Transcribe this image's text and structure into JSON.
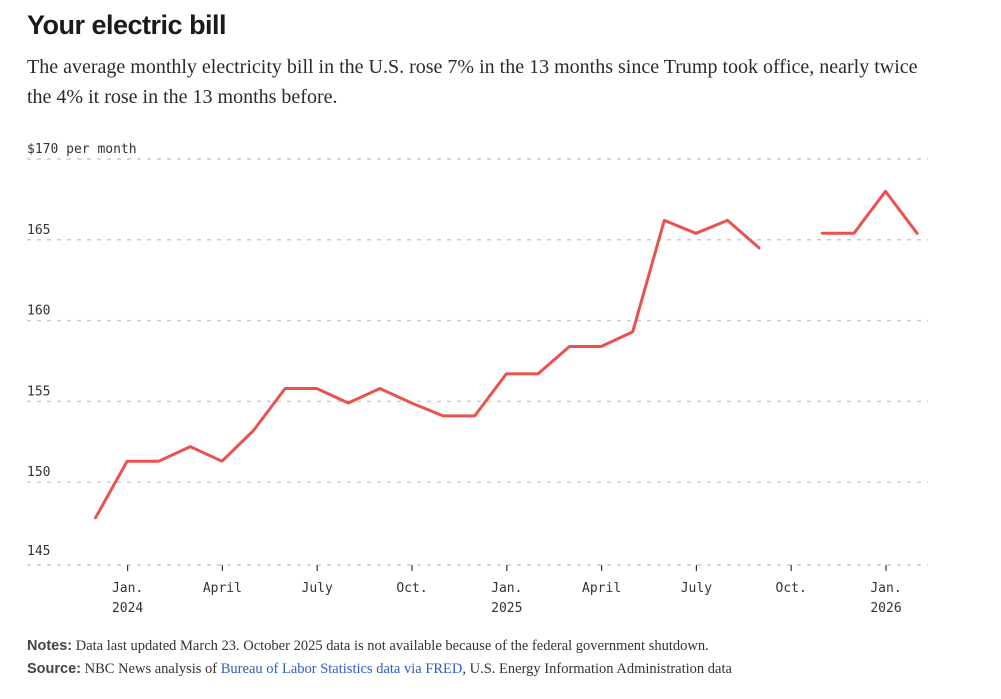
{
  "header": {
    "title": "Your electric bill",
    "subtitle": "The average monthly electricity bill in the U.S. rose 7% in the 13 months since Trump took office, nearly twice the 4% it rose in the 13 months before."
  },
  "colors": {
    "line": "#e8534f",
    "grid": "#cccccc",
    "text": "#333333",
    "link": "#2f5cc7"
  },
  "chart_data": {
    "type": "line",
    "title": "Your electric bill",
    "ylabel": "$170 per month",
    "ylim": [
      145,
      170
    ],
    "yticks": [
      {
        "value": 170,
        "label": "$170 per month"
      },
      {
        "value": 165,
        "label": "165"
      },
      {
        "value": 160,
        "label": "160"
      },
      {
        "value": 155,
        "label": "155"
      },
      {
        "value": 150,
        "label": "150"
      },
      {
        "value": 145,
        "label": "145"
      }
    ],
    "xticks": [
      {
        "index": 1,
        "line1": "Jan.",
        "line2": "2024"
      },
      {
        "index": 4,
        "line1": "April",
        "line2": ""
      },
      {
        "index": 7,
        "line1": "July",
        "line2": ""
      },
      {
        "index": 10,
        "line1": "Oct.",
        "line2": ""
      },
      {
        "index": 13,
        "line1": "Jan.",
        "line2": "2025"
      },
      {
        "index": 16,
        "line1": "April",
        "line2": ""
      },
      {
        "index": 19,
        "line1": "July",
        "line2": ""
      },
      {
        "index": 22,
        "line1": "Oct.",
        "line2": ""
      },
      {
        "index": 25,
        "line1": "Jan.",
        "line2": "2026"
      }
    ],
    "series": [
      {
        "name": "Average monthly electricity bill",
        "points": [
          {
            "month": "Dec. 2023",
            "value": 147.8
          },
          {
            "month": "Jan. 2024",
            "value": 151.3
          },
          {
            "month": "Feb. 2024",
            "value": 151.3
          },
          {
            "month": "Mar. 2024",
            "value": 152.2
          },
          {
            "month": "Apr. 2024",
            "value": 151.3
          },
          {
            "month": "May 2024",
            "value": 153.2
          },
          {
            "month": "Jun. 2024",
            "value": 155.8
          },
          {
            "month": "Jul. 2024",
            "value": 155.8
          },
          {
            "month": "Aug. 2024",
            "value": 154.9
          },
          {
            "month": "Sep. 2024",
            "value": 155.8
          },
          {
            "month": "Oct. 2024",
            "value": 154.9
          },
          {
            "month": "Nov. 2024",
            "value": 154.1
          },
          {
            "month": "Dec. 2024",
            "value": 154.1
          },
          {
            "month": "Jan. 2025",
            "value": 156.7
          },
          {
            "month": "Feb. 2025",
            "value": 156.7
          },
          {
            "month": "Mar. 2025",
            "value": 158.4
          },
          {
            "month": "Apr. 2025",
            "value": 158.4
          },
          {
            "month": "May 2025",
            "value": 159.3
          },
          {
            "month": "Jun. 2025",
            "value": 166.2
          },
          {
            "month": "Jul. 2025",
            "value": 165.4
          },
          {
            "month": "Aug. 2025",
            "value": 166.2
          },
          {
            "month": "Sep. 2025",
            "value": 164.5
          },
          {
            "month": "Oct. 2025",
            "value": null
          },
          {
            "month": "Nov. 2025",
            "value": 165.4
          },
          {
            "month": "Dec. 2025",
            "value": 165.4
          },
          {
            "month": "Jan. 2026",
            "value": 168.0
          },
          {
            "month": "Feb. 2026",
            "value": 165.4
          }
        ]
      }
    ]
  },
  "footer": {
    "notes_label": "Notes:",
    "notes_text": " Data last updated March 23. October 2025 data is not available because of the federal government shutdown.",
    "source_label": "Source:",
    "source_text_1": " NBC News analysis of ",
    "source_link": "Bureau of Labor Statistics data via FRED",
    "source_text_2": ", U.S. Energy Information Administration data"
  }
}
